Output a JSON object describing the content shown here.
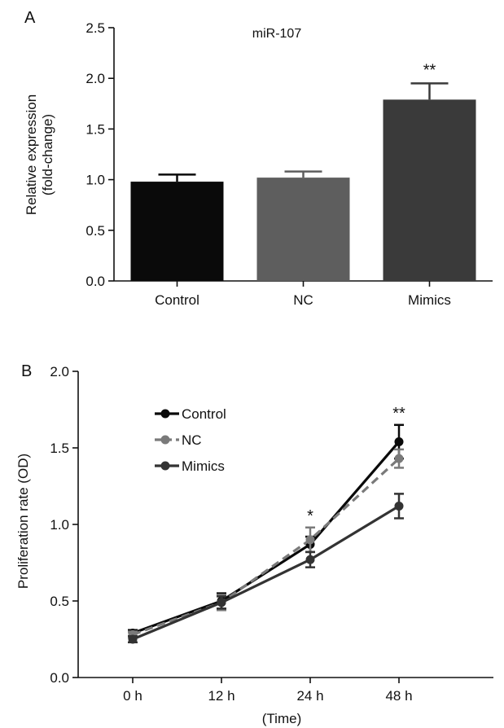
{
  "chart_data": [
    {
      "panel": "A",
      "type": "bar",
      "title": "miR-107",
      "xlabel": "",
      "ylabel": [
        "Relative expression",
        "(fold-change)"
      ],
      "ylim": [
        0,
        2.5
      ],
      "yticks": [
        "0.0",
        "0.5",
        "1.0",
        "1.5",
        "2.0",
        "2.5"
      ],
      "categories": [
        "Control",
        "NC",
        "Mimics"
      ],
      "values": [
        0.98,
        1.02,
        1.79
      ],
      "errors": [
        0.07,
        0.06,
        0.16
      ],
      "colors": [
        "#0a0a0a",
        "#5e5e5e",
        "#3a3a3a"
      ],
      "annotations": [
        {
          "category": "Mimics",
          "text": "**"
        }
      ]
    },
    {
      "panel": "B",
      "type": "line",
      "title": "",
      "xlabel": "(Time)",
      "ylabel": "Proliferation rate (OD)",
      "ylim": [
        0,
        2.0
      ],
      "yticks": [
        "0.0",
        "0.5",
        "1.0",
        "1.5",
        "2.0"
      ],
      "x": [
        "0 h",
        "12 h",
        "24 h",
        "48 h"
      ],
      "legend_position": "top-left",
      "series": [
        {
          "name": "Control",
          "values": [
            0.29,
            0.5,
            0.87,
            1.54
          ],
          "errors": [
            0.02,
            0.05,
            0.05,
            0.11
          ],
          "color": "#0a0a0a",
          "dashed": false
        },
        {
          "name": "NC",
          "values": [
            0.28,
            0.49,
            0.9,
            1.43
          ],
          "errors": [
            0.02,
            0.05,
            0.08,
            0.06
          ],
          "color": "#7a7a7a",
          "dashed": true
        },
        {
          "name": "Mimics",
          "values": [
            0.25,
            0.49,
            0.77,
            1.12
          ],
          "errors": [
            0.02,
            0.04,
            0.05,
            0.08
          ],
          "color": "#333333",
          "dashed": false
        }
      ],
      "annotations": [
        {
          "x": "24 h",
          "text": "*"
        },
        {
          "x": "48 h",
          "text": "**"
        }
      ]
    }
  ]
}
